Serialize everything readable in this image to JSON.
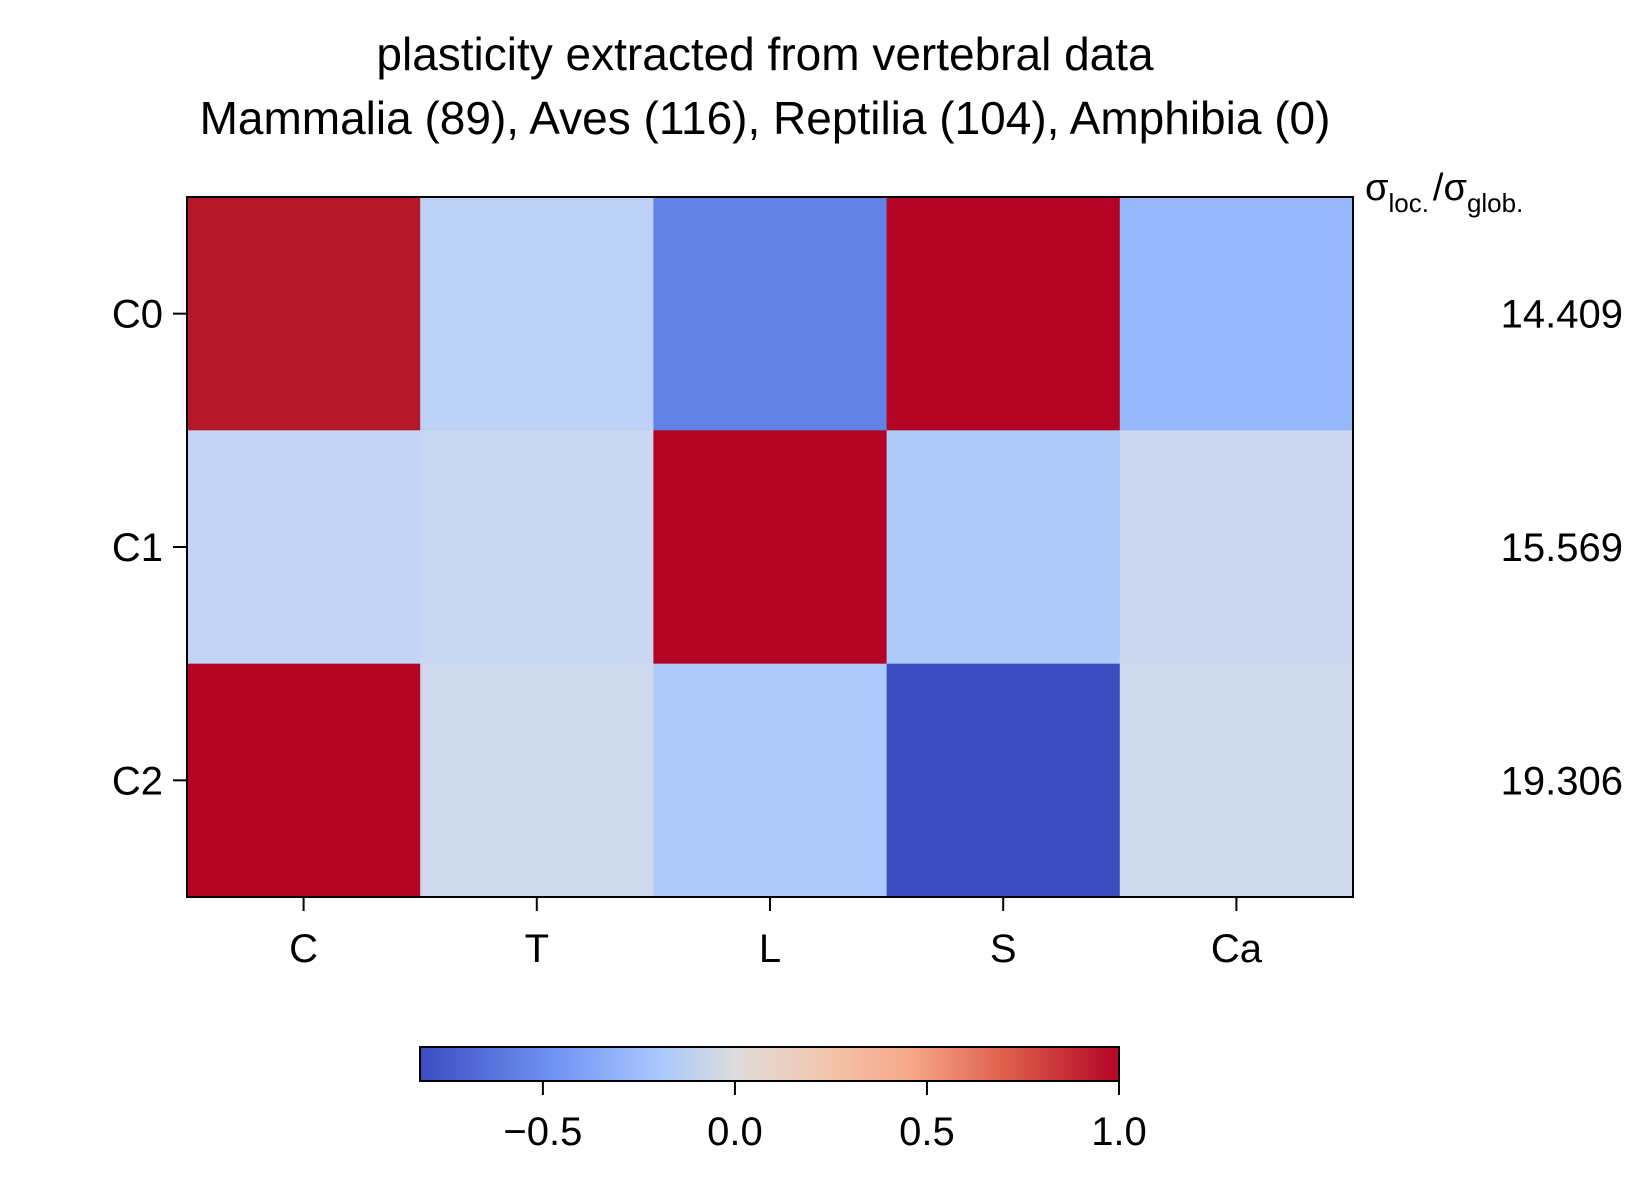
{
  "chart_data": {
    "type": "heatmap",
    "title": "plasticity extracted from vertebral data",
    "subtitle": "Mammalia (89), Aves (116), Reptilia (104), Amphibia (0)",
    "x_categories": [
      "C",
      "T",
      "L",
      "S",
      "Ca"
    ],
    "y_categories": [
      "C0",
      "C1",
      "C2"
    ],
    "values": [
      [
        0.95,
        -0.25,
        -0.62,
        1.0,
        -0.42
      ],
      [
        -0.22,
        -0.18,
        1.0,
        -0.33,
        -0.17
      ],
      [
        1.0,
        -0.15,
        -0.33,
        -0.82,
        -0.14
      ]
    ],
    "right_column_label": {
      "main1": "σ",
      "sub1": "loc.",
      "slash": "/",
      "main2": "σ",
      "sub2": "glob."
    },
    "right_column_values": [
      "14.409",
      "15.569",
      "19.306"
    ],
    "colormap": "coolwarm",
    "colormap_stops": [
      [
        0.0,
        "#3b4cc0"
      ],
      [
        0.125,
        "#5977e3"
      ],
      [
        0.25,
        "#7b9ff9"
      ],
      [
        0.375,
        "#9ebeff"
      ],
      [
        0.5,
        "#c0d4f5"
      ],
      [
        0.625,
        "#dddcdc"
      ],
      [
        0.75,
        "#f2cbb7"
      ],
      [
        0.875,
        "#f7ac8e"
      ],
      [
        1.0,
        "#ee8468"
      ]
    ],
    "colorbar": {
      "vmin": -0.82,
      "vmax": 1.0,
      "ticks": [
        -0.5,
        0.0,
        0.5,
        1.0
      ],
      "tick_labels": [
        "−0.5",
        "0.0",
        "0.5",
        "1.0"
      ]
    }
  }
}
